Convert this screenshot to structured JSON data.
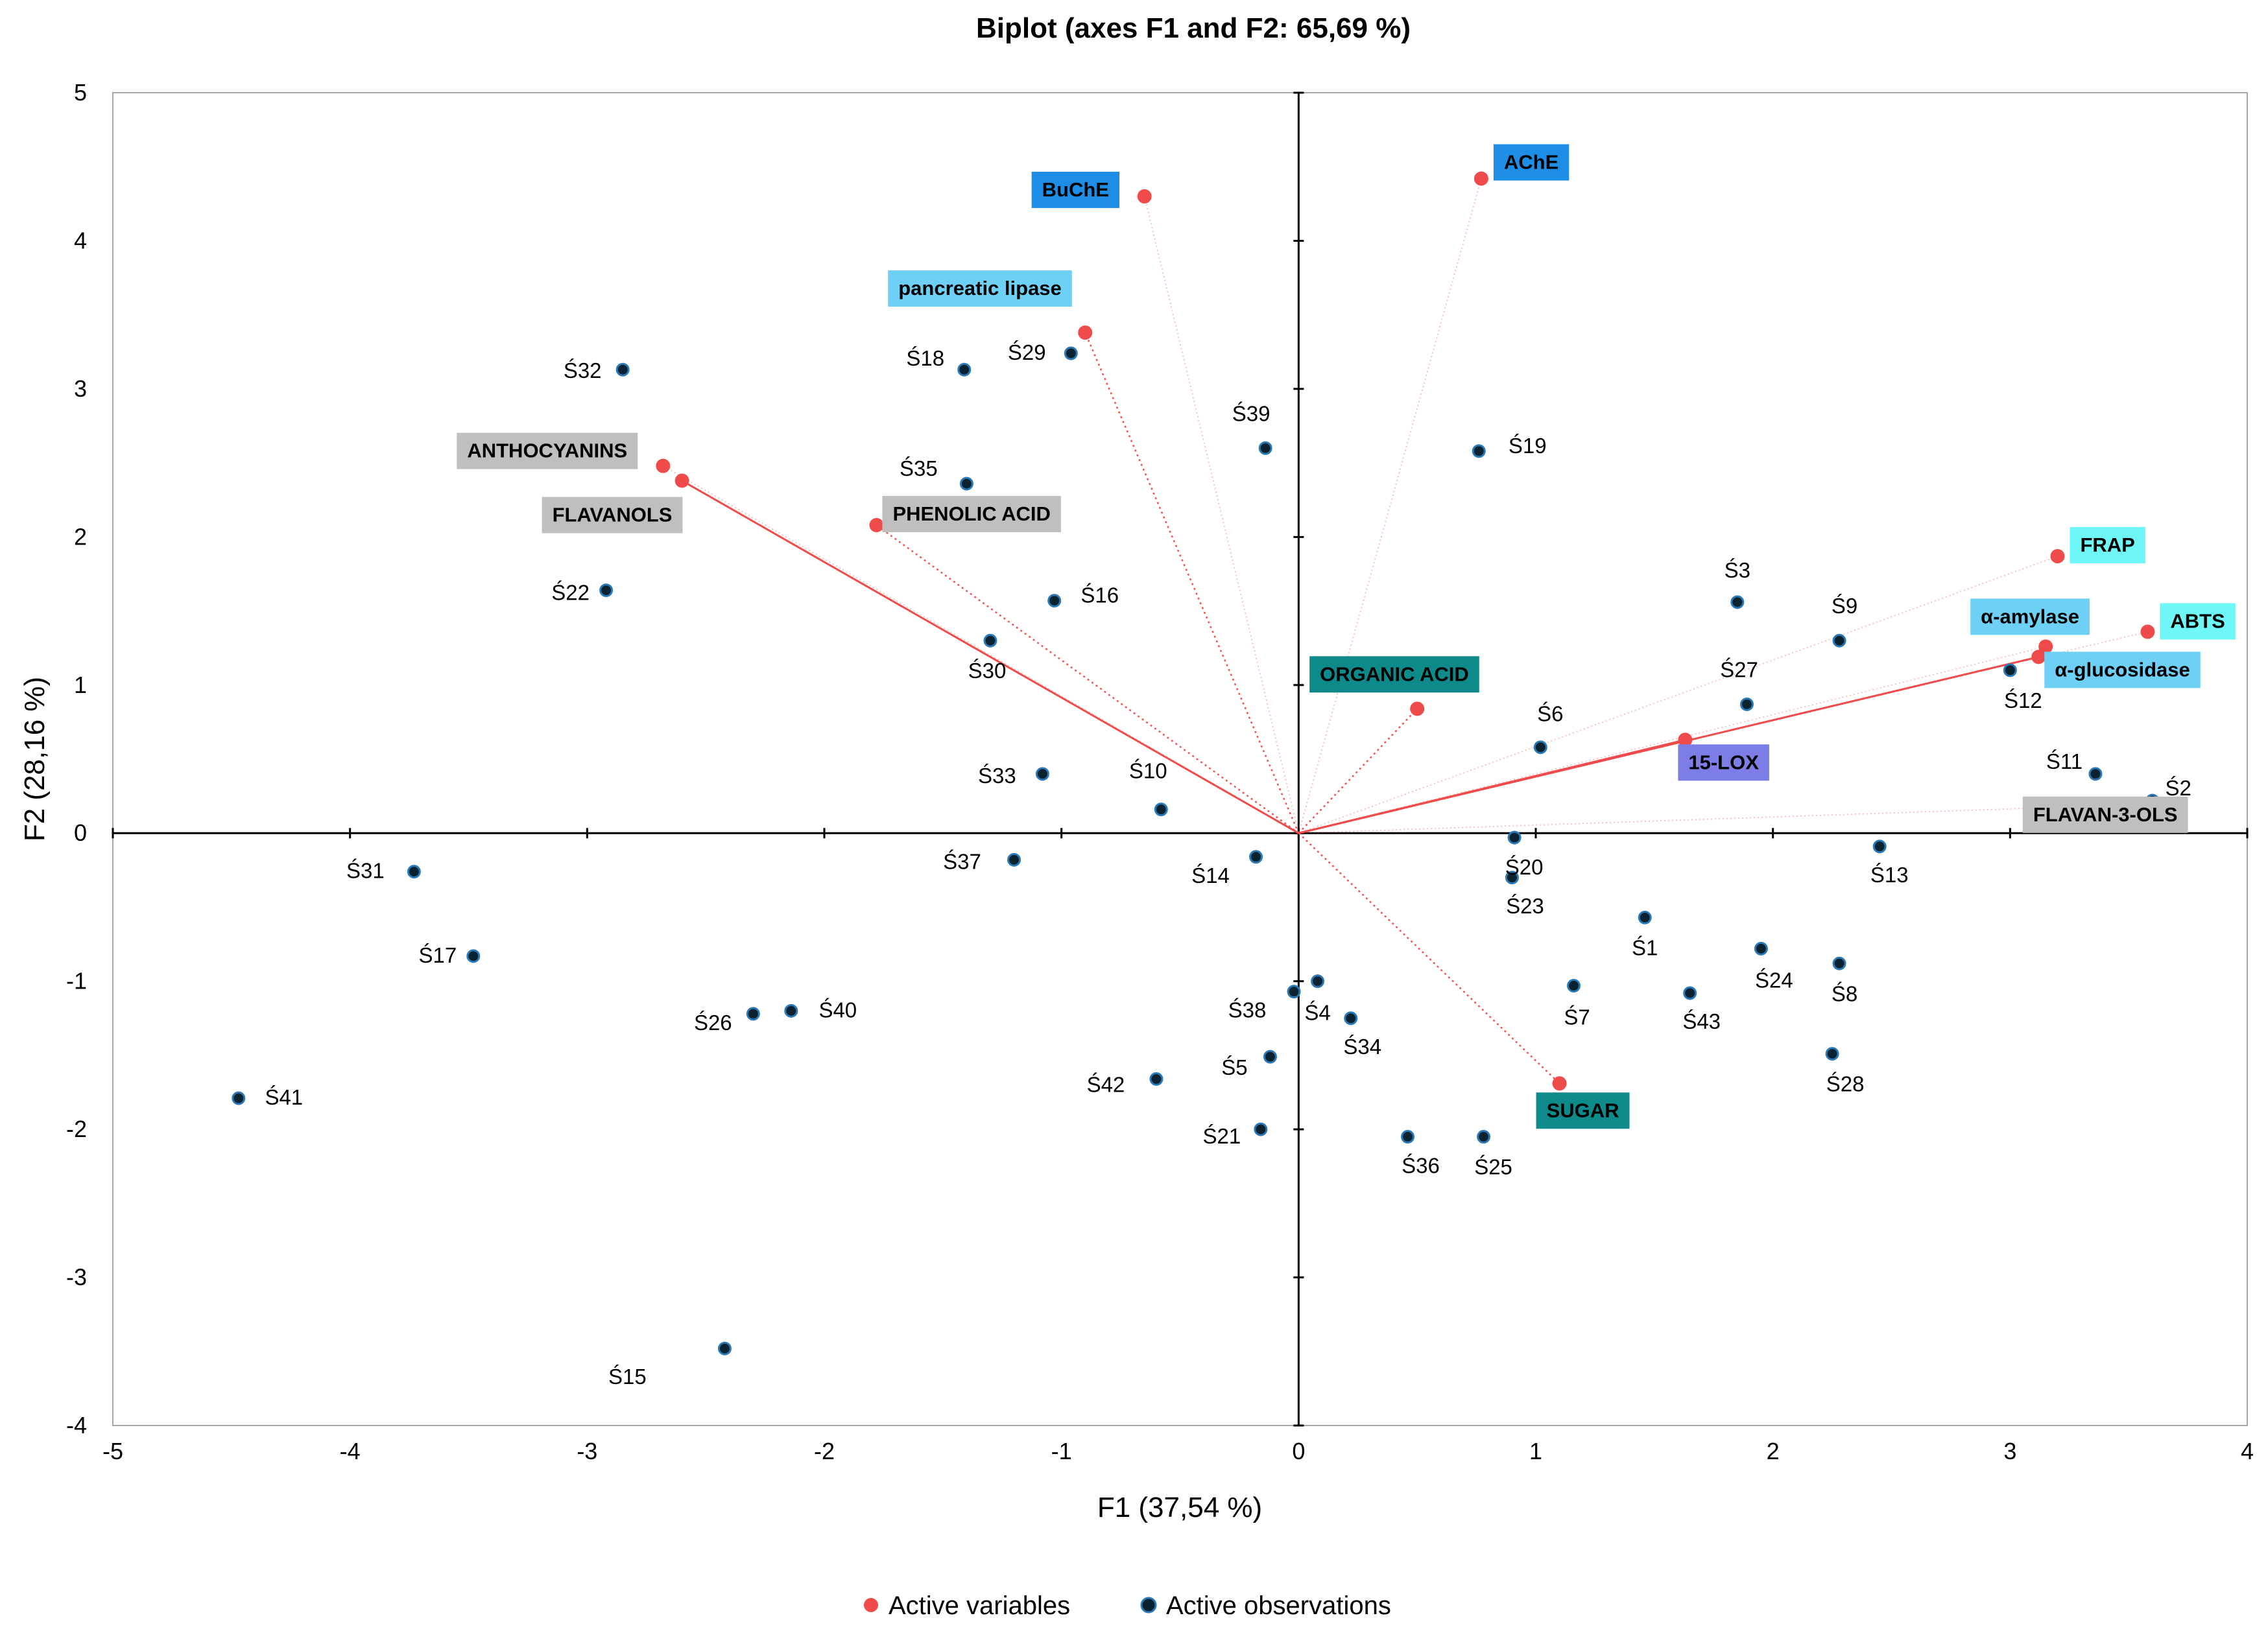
{
  "chart_data": {
    "type": "scatter",
    "title": "Biplot (axes F1 and F2: 65,69 %)",
    "xlabel": "F1 (37,54 %)",
    "ylabel": "F2 (28,16 %)",
    "xlim": [
      -5,
      4
    ],
    "ylim": [
      -4,
      5
    ],
    "xticks": [
      "-5",
      "-4",
      "-3",
      "-2",
      "-1",
      "0",
      "1",
      "2",
      "3",
      "4"
    ],
    "yticks": [
      "-4",
      "-3",
      "-2",
      "-1",
      "0",
      "1",
      "2",
      "3",
      "4",
      "5"
    ],
    "grid": false,
    "legend_position": "bottom",
    "legend": [
      {
        "name": "Active variables",
        "color": "#f04b4b"
      },
      {
        "name": "Active observations",
        "color": "#0b2230"
      }
    ],
    "colors": {
      "variable_point": "#f04b4b",
      "observation_point": "#0b2230",
      "observation_ring": "#2a7ab8",
      "vector_line": "#f04b4b",
      "axis": "#000000",
      "frame": "#a6a6a6"
    },
    "variables": [
      {
        "name": "BuChE",
        "x": -0.65,
        "y": 4.3,
        "box": "#1e8de6",
        "text": "#000000",
        "line": "faint"
      },
      {
        "name": "AChE",
        "x": 0.77,
        "y": 4.42,
        "box": "#1e8de6",
        "text": "#000000",
        "line": "faint"
      },
      {
        "name": "pancreatic lipase",
        "x": -0.9,
        "y": 3.38,
        "box": "#6fd0f6",
        "text": "#000000",
        "line": "dotted"
      },
      {
        "name": "ANTHOCYANINS",
        "x": -2.68,
        "y": 2.48,
        "box": "#bfbfbf",
        "text": "#000000",
        "line": "faint"
      },
      {
        "name": "FLAVANOLS",
        "x": -2.6,
        "y": 2.38,
        "box": "#bfbfbf",
        "text": "#000000",
        "line": "solid"
      },
      {
        "name": "PHENOLIC ACID",
        "x": -1.78,
        "y": 2.08,
        "box": "#bfbfbf",
        "text": "#000000",
        "line": "dotted"
      },
      {
        "name": "ORGANIC ACID",
        "x": 0.5,
        "y": 0.84,
        "box": "#0f8a8a",
        "text": "#000000",
        "line": "dotted"
      },
      {
        "name": "FRAP",
        "x": 3.2,
        "y": 1.87,
        "box": "#6ff6f6",
        "text": "#000000",
        "line": "faint"
      },
      {
        "name": "α-amylase",
        "x": 3.15,
        "y": 1.26,
        "box": "#6fd0f6",
        "text": "#000000",
        "line": "faint"
      },
      {
        "name": "ABTS",
        "x": 3.58,
        "y": 1.36,
        "box": "#6ff6f6",
        "text": "#000000",
        "line": "faint"
      },
      {
        "name": "α-glucosidase",
        "x": 3.12,
        "y": 1.19,
        "box": "#6fd0f6",
        "text": "#000000",
        "line": "solid"
      },
      {
        "name": "15-LOX",
        "x": 1.63,
        "y": 0.63,
        "box": "#7d7de8",
        "text": "#000000",
        "line": "solid"
      },
      {
        "name": "FLAVAN-3-OLS",
        "x": 3.48,
        "y": 0.19,
        "box": "#bfbfbf",
        "text": "#000000",
        "line": "faint"
      },
      {
        "name": "SUGAR",
        "x": 1.1,
        "y": -1.69,
        "box": "#0f8a8a",
        "text": "#000000",
        "line": "dotted"
      }
    ],
    "observations": [
      {
        "label": "Ś1",
        "x": 1.46,
        "y": -0.57
      },
      {
        "label": "Ś2",
        "x": 3.6,
        "y": 0.22
      },
      {
        "label": "Ś3",
        "x": 1.85,
        "y": 1.56
      },
      {
        "label": "Ś4",
        "x": 0.08,
        "y": -1.0
      },
      {
        "label": "Ś5",
        "x": -0.12,
        "y": -1.51
      },
      {
        "label": "Ś6",
        "x": 1.02,
        "y": 0.58
      },
      {
        "label": "Ś7",
        "x": 1.16,
        "y": -1.03
      },
      {
        "label": "Ś8",
        "x": 2.28,
        "y": -0.88
      },
      {
        "label": "Ś9",
        "x": 2.28,
        "y": 1.3
      },
      {
        "label": "Ś10",
        "x": -0.58,
        "y": 0.16
      },
      {
        "label": "Ś11",
        "x": 3.36,
        "y": 0.4
      },
      {
        "label": "Ś12",
        "x": 3.0,
        "y": 1.1
      },
      {
        "label": "Ś13",
        "x": 2.45,
        "y": -0.09
      },
      {
        "label": "Ś14",
        "x": -0.18,
        "y": -0.16
      },
      {
        "label": "Ś15",
        "x": -2.42,
        "y": -3.48
      },
      {
        "label": "Ś16",
        "x": -1.03,
        "y": 1.57
      },
      {
        "label": "Ś17",
        "x": -3.48,
        "y": -0.83
      },
      {
        "label": "Ś18",
        "x": -1.41,
        "y": 3.13
      },
      {
        "label": "Ś19",
        "x": 0.76,
        "y": 2.58
      },
      {
        "label": "Ś20",
        "x": 0.91,
        "y": -0.03
      },
      {
        "label": "Ś21",
        "x": -0.16,
        "y": -2.0
      },
      {
        "label": "Ś22",
        "x": -2.92,
        "y": 1.64
      },
      {
        "label": "Ś23",
        "x": 0.9,
        "y": -0.3
      },
      {
        "label": "Ś24",
        "x": 1.95,
        "y": -0.78
      },
      {
        "label": "Ś25",
        "x": 0.78,
        "y": -2.05
      },
      {
        "label": "Ś26",
        "x": -2.3,
        "y": -1.22
      },
      {
        "label": "Ś27",
        "x": 1.89,
        "y": 0.87
      },
      {
        "label": "Ś28",
        "x": 2.25,
        "y": -1.49
      },
      {
        "label": "Ś29",
        "x": -0.96,
        "y": 3.24
      },
      {
        "label": "Ś30",
        "x": -1.3,
        "y": 1.3
      },
      {
        "label": "Ś31",
        "x": -3.73,
        "y": -0.26
      },
      {
        "label": "Ś32",
        "x": -2.85,
        "y": 3.13
      },
      {
        "label": "Ś33",
        "x": -1.08,
        "y": 0.4
      },
      {
        "label": "Ś34",
        "x": 0.22,
        "y": -1.25
      },
      {
        "label": "Ś35",
        "x": -1.4,
        "y": 2.36
      },
      {
        "label": "Ś36",
        "x": 0.46,
        "y": -2.05
      },
      {
        "label": "Ś37",
        "x": -1.2,
        "y": -0.18
      },
      {
        "label": "Ś38",
        "x": -0.02,
        "y": -1.07
      },
      {
        "label": "Ś39",
        "x": -0.14,
        "y": 2.6
      },
      {
        "label": "Ś40",
        "x": -2.14,
        "y": -1.2
      },
      {
        "label": "Ś41",
        "x": -4.47,
        "y": -1.79
      },
      {
        "label": "Ś42",
        "x": -0.6,
        "y": -1.66
      },
      {
        "label": "Ś43",
        "x": 1.65,
        "y": -1.08
      }
    ]
  }
}
